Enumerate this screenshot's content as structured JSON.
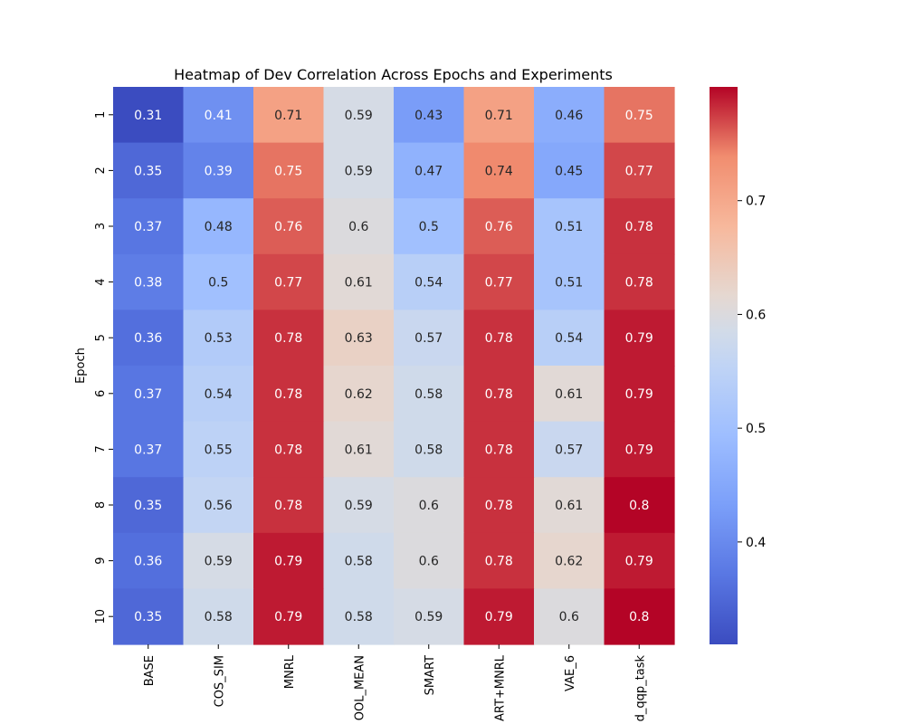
{
  "chart_data": {
    "type": "heatmap",
    "title": "Heatmap of Dev Correlation Across Epochs and Experiments",
    "ylabel": "Epoch",
    "xlabel": "",
    "rows": [
      "1",
      "2",
      "3",
      "4",
      "5",
      "6",
      "7",
      "8",
      "9",
      "10"
    ],
    "columns": [
      "BASE",
      "COS_SIM",
      "MNRL",
      "OOL_MEAN",
      "SMART",
      "ART+MNRL",
      "VAE_6",
      "d_qqp_task"
    ],
    "values": [
      [
        0.31,
        0.41,
        0.71,
        0.59,
        0.43,
        0.71,
        0.46,
        0.75
      ],
      [
        0.35,
        0.39,
        0.75,
        0.59,
        0.47,
        0.74,
        0.45,
        0.77
      ],
      [
        0.37,
        0.48,
        0.76,
        0.6,
        0.5,
        0.76,
        0.51,
        0.78
      ],
      [
        0.38,
        0.5,
        0.77,
        0.61,
        0.54,
        0.77,
        0.51,
        0.78
      ],
      [
        0.36,
        0.53,
        0.78,
        0.63,
        0.57,
        0.78,
        0.54,
        0.79
      ],
      [
        0.37,
        0.54,
        0.78,
        0.62,
        0.58,
        0.78,
        0.61,
        0.79
      ],
      [
        0.37,
        0.55,
        0.78,
        0.61,
        0.58,
        0.78,
        0.57,
        0.79
      ],
      [
        0.35,
        0.56,
        0.78,
        0.59,
        0.6,
        0.78,
        0.61,
        0.8
      ],
      [
        0.36,
        0.59,
        0.79,
        0.58,
        0.6,
        0.78,
        0.62,
        0.79
      ],
      [
        0.35,
        0.58,
        0.79,
        0.58,
        0.59,
        0.79,
        0.6,
        0.8
      ]
    ],
    "colormap": "coolwarm",
    "vmin": 0.31,
    "vmax": 0.8,
    "colorbar_ticks": [
      "0.4",
      "0.5",
      "0.6",
      "0.7"
    ],
    "colorbar_tick_values": [
      0.4,
      0.5,
      0.6,
      0.7
    ],
    "annotations": true
  }
}
